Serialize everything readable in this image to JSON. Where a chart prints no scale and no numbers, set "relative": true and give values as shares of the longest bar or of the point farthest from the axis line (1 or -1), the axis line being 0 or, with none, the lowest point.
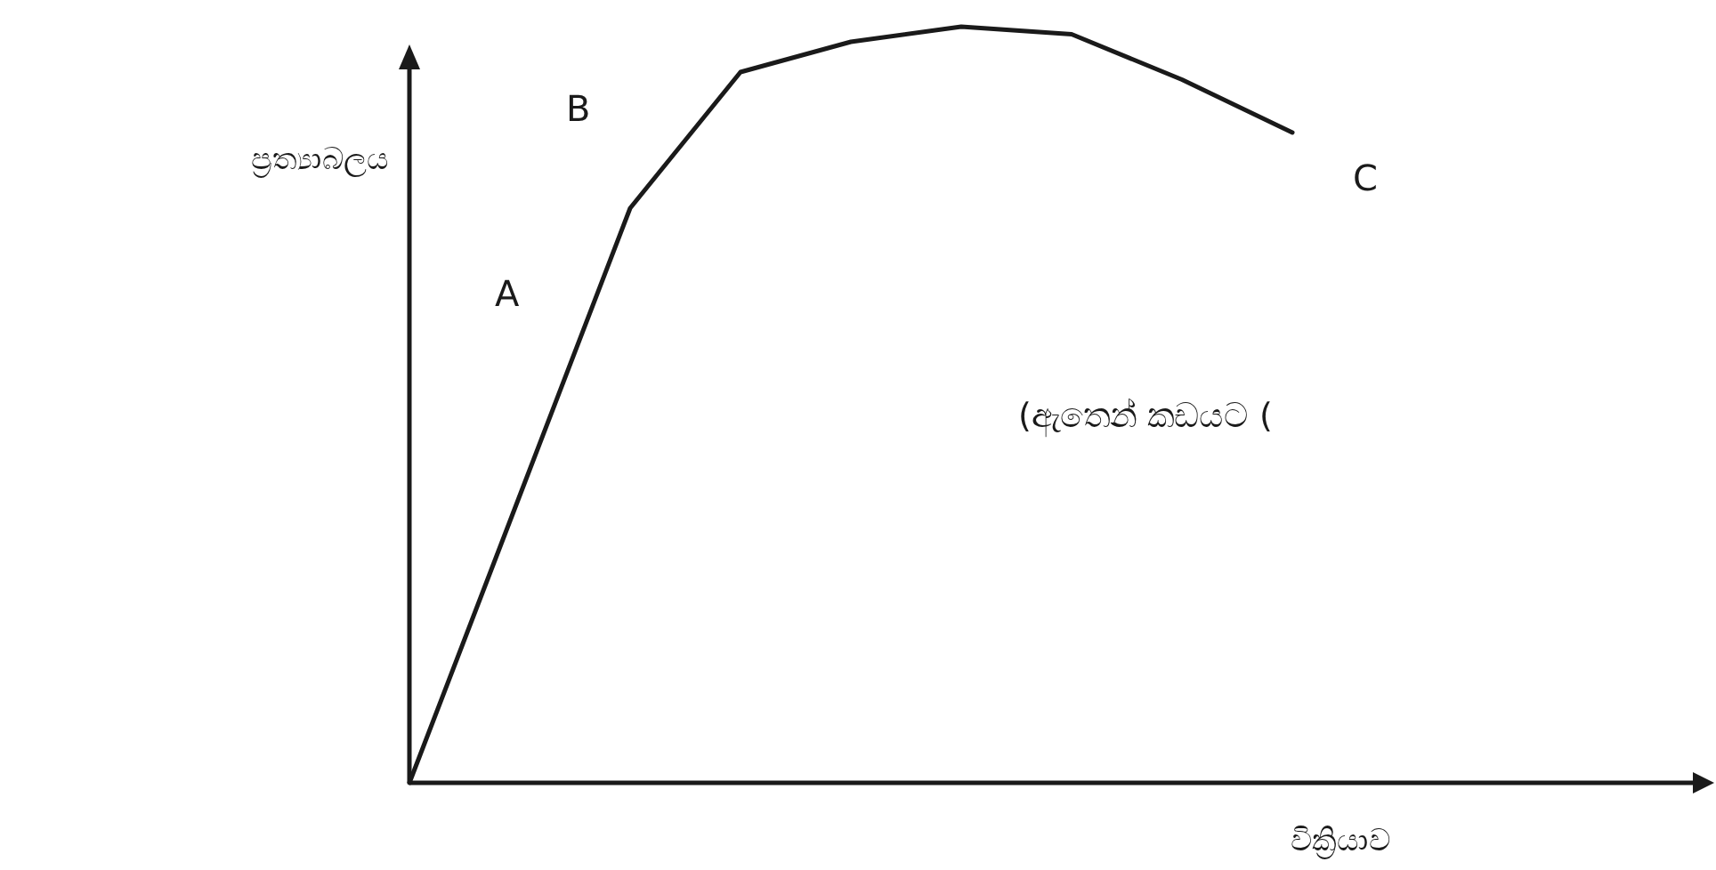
{
  "chart_data": {
    "type": "line",
    "relative": true,
    "xlabel": "වික්‍රියාව",
    "ylabel": "ප්‍රත්‍යාබලය",
    "categories": [
      null,
      null,
      null,
      null,
      null,
      null,
      null,
      null,
      null
    ],
    "values": [
      0,
      0.38,
      0.76,
      0.94,
      0.98,
      1,
      0.99,
      0.93,
      0.86
    ],
    "color": "#1a1a1a",
    "annotations": [
      "A",
      "B",
      "C",
      "(ඇතෙන් කඩයට ("
    ]
  }
}
